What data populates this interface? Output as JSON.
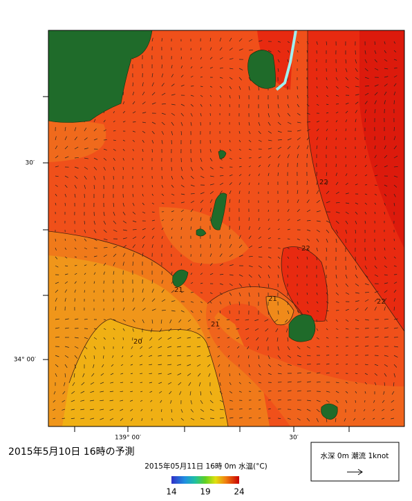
{
  "map": {
    "title": "2015年5月10日 16時の予測",
    "subtitle": "2015年05月11日 16時 0m 水温(°C)",
    "lat_labels": [
      "30′",
      "34° 00′"
    ],
    "lon_labels": [
      "139° 00′",
      "30′"
    ],
    "contour_labels": [
      "22",
      "22",
      "22",
      "21",
      "21",
      "21",
      "20"
    ],
    "colorbar": {
      "ticks": [
        14,
        19,
        24
      ]
    },
    "legend": "水深 0m 潮流 1knot"
  }
}
